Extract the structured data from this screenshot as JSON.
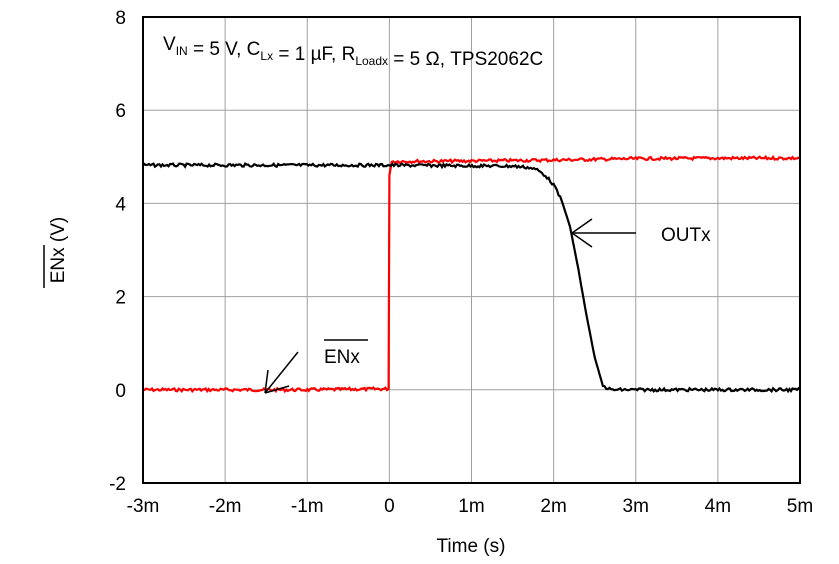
{
  "chart_data": {
    "type": "line",
    "title": "",
    "annotation_box": {
      "parts": [
        {
          "text": "V",
          "sub": "IN"
        },
        {
          "text": " = 5 V, C",
          "sub": "Lx"
        },
        {
          "text": " = 1 µF, R",
          "sub": "Loadx"
        },
        {
          "text": " = 5 Ω, TPS2062C",
          "sub": ""
        }
      ]
    },
    "xlabel": "Time (s)",
    "ylabel": "ENx (V)",
    "ylabel_overline": "ENx",
    "xlim": [
      -0.003,
      0.005
    ],
    "ylim": [
      -2,
      8
    ],
    "xticks": [
      -0.003,
      -0.002,
      -0.001,
      0,
      0.001,
      0.002,
      0.003,
      0.004,
      0.005
    ],
    "xtick_labels": [
      "-3m",
      "-2m",
      "-1m",
      "0",
      "1m",
      "2m",
      "3m",
      "4m",
      "5m"
    ],
    "yticks": [
      -2,
      0,
      2,
      4,
      6,
      8
    ],
    "ytick_labels": [
      "-2",
      "0",
      "2",
      "4",
      "6",
      "8"
    ],
    "grid": true,
    "legend": "none",
    "series": [
      {
        "name": "ENx",
        "label_overline": true,
        "color": "#ff0000",
        "x": [
          -0.003,
          -0.001,
          -1e-05,
          0,
          3e-05,
          0.001,
          0.002,
          0.003,
          0.004,
          0.005
        ],
        "y": [
          0,
          0,
          0.02,
          4.6,
          4.9,
          4.91,
          4.93,
          4.96,
          4.97,
          4.97
        ]
      },
      {
        "name": "OUTx",
        "label_overline": false,
        "color": "#000000",
        "x": [
          -0.003,
          0.0,
          0.0015,
          0.0017,
          0.0018,
          0.0019,
          0.002,
          0.0021,
          0.0022,
          0.0023,
          0.0024,
          0.0025,
          0.0026,
          0.0027,
          0.003,
          0.005
        ],
        "y": [
          4.82,
          4.82,
          4.8,
          4.77,
          4.72,
          4.6,
          4.4,
          4.05,
          3.5,
          2.6,
          1.6,
          0.7,
          0.08,
          0.0,
          0.0,
          0.0
        ]
      }
    ]
  }
}
